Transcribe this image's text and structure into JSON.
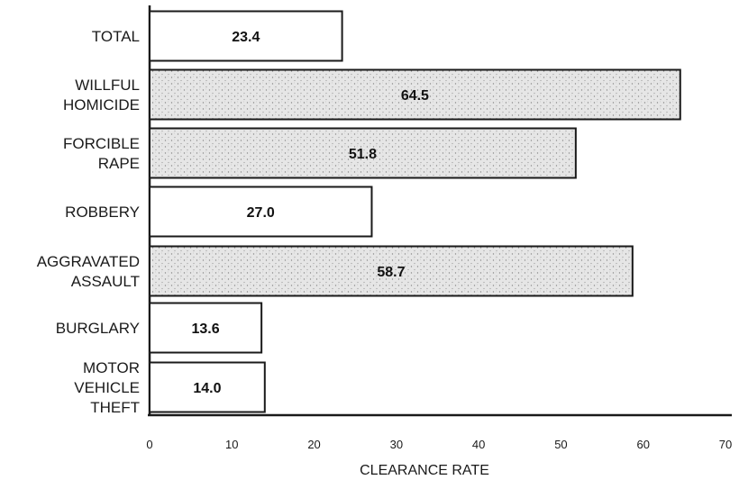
{
  "chart_data": {
    "type": "bar",
    "orientation": "horizontal",
    "categories": [
      [
        "TOTAL"
      ],
      [
        "WILLFUL",
        "HOMICIDE"
      ],
      [
        "FORCIBLE",
        "RAPE"
      ],
      [
        "ROBBERY"
      ],
      [
        "AGGRAVATED",
        "ASSAULT"
      ],
      [
        "BURGLARY"
      ],
      [
        "MOTOR",
        "VEHICLE",
        "THEFT"
      ]
    ],
    "values": [
      23.4,
      64.5,
      51.8,
      27.0,
      58.7,
      13.6,
      14.0
    ],
    "value_labels": [
      "23.4",
      "64.5",
      "51.8",
      "27.0",
      "58.7",
      "13.6",
      "14.0"
    ],
    "shaded": [
      false,
      true,
      true,
      false,
      true,
      false,
      false
    ],
    "xlabel": "CLEARANCE RATE",
    "xlim": [
      0,
      70
    ],
    "xticks": [
      "0",
      "10",
      "20",
      "30",
      "40",
      "50",
      "60",
      "70"
    ],
    "grid": false,
    "colors": {
      "bar_fill": "#ffffff",
      "bar_shaded": "#e4e4e4",
      "stroke": "#1a1a1a"
    }
  }
}
